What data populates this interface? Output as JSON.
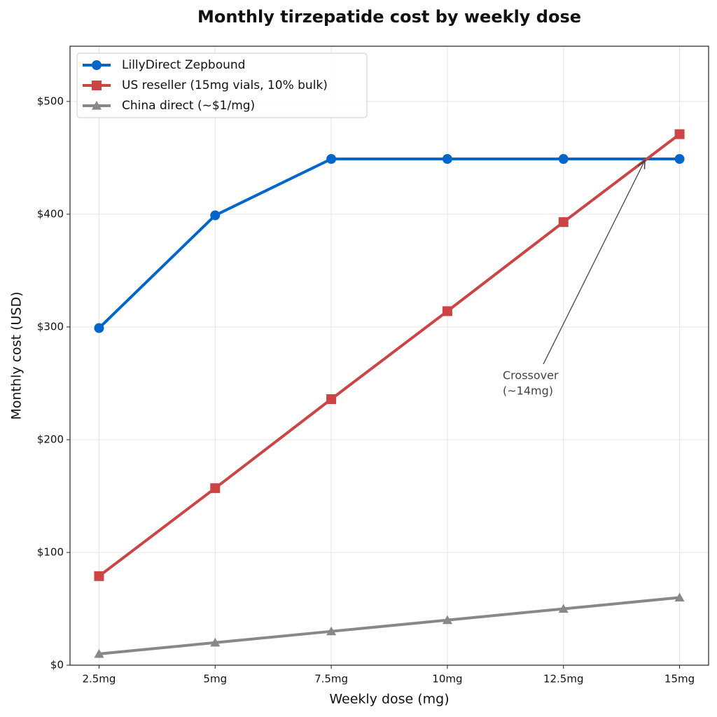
{
  "chart_data": {
    "type": "line",
    "title": "Monthly tirzepatide cost by weekly dose",
    "x_label": "Weekly dose (mg)",
    "y_label": "Monthly cost (USD)",
    "categories": [
      "2.5mg",
      "5mg",
      "7.5mg",
      "10mg",
      "12.5mg",
      "15mg"
    ],
    "series": [
      {
        "name": "LillyDirect Zepbound",
        "color": "#0066cc",
        "marker": "circle",
        "values": [
          299,
          399,
          449,
          449,
          449,
          449
        ]
      },
      {
        "name": "US reseller (15mg vials, 10% bulk)",
        "color": "#cc4444",
        "marker": "square",
        "values": [
          79,
          157,
          236,
          314,
          393,
          471
        ]
      },
      {
        "name": "China direct (~$1/mg)",
        "color": "#888888",
        "marker": "triangle",
        "values": [
          10,
          20,
          30,
          40,
          50,
          60
        ]
      }
    ],
    "ylim": [
      0,
      549
    ],
    "yticks": [
      {
        "value": 0,
        "label": "$0"
      },
      {
        "value": 100,
        "label": "$100"
      },
      {
        "value": 200,
        "label": "$200"
      },
      {
        "value": 300,
        "label": "$300"
      },
      {
        "value": 400,
        "label": "$400"
      },
      {
        "value": 500,
        "label": "$500"
      }
    ],
    "grid": true,
    "legend": "upper left",
    "annotation": [
      "Crossover",
      "(~14mg)"
    ]
  }
}
